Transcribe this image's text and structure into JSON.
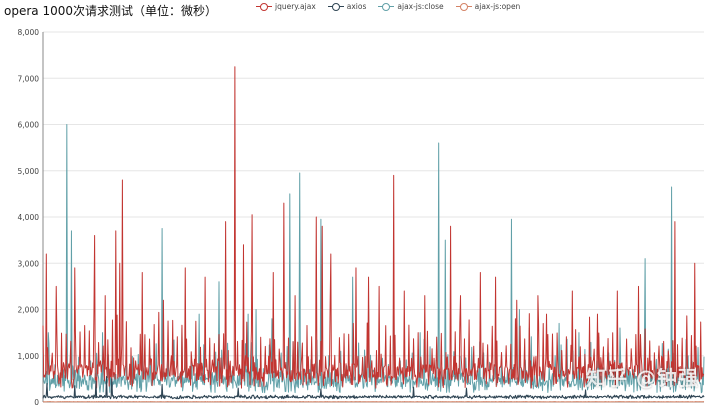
{
  "chart_data": {
    "type": "line",
    "title": "opera 1000次请求测试（单位：微秒）",
    "xlabel": "",
    "ylabel": "",
    "ylim": [
      0,
      8000
    ],
    "yticks": [
      0,
      1000,
      2000,
      3000,
      4000,
      5000,
      6000,
      7000,
      8000
    ],
    "ytick_labels": [
      "0",
      "1,000",
      "2,000",
      "3,000",
      "4,000",
      "5,000",
      "6,000",
      "7,000",
      "8,000"
    ],
    "x_count": 1000,
    "grid": true,
    "legend_position": "top",
    "series": [
      {
        "name": "jquery.ajax",
        "color": "#c23531",
        "baseline": 650,
        "noise": 350,
        "spike_every": 7,
        "spikes": [
          {
            "x": 5,
            "y": 3200
          },
          {
            "x": 20,
            "y": 2500
          },
          {
            "x": 48,
            "y": 2900
          },
          {
            "x": 78,
            "y": 3600
          },
          {
            "x": 94,
            "y": 2300
          },
          {
            "x": 110,
            "y": 3700
          },
          {
            "x": 116,
            "y": 3000
          },
          {
            "x": 120,
            "y": 4800
          },
          {
            "x": 150,
            "y": 2800
          },
          {
            "x": 182,
            "y": 2200
          },
          {
            "x": 215,
            "y": 2900
          },
          {
            "x": 245,
            "y": 2700
          },
          {
            "x": 276,
            "y": 3900
          },
          {
            "x": 290,
            "y": 7250
          },
          {
            "x": 303,
            "y": 3400
          },
          {
            "x": 316,
            "y": 4050
          },
          {
            "x": 348,
            "y": 2800
          },
          {
            "x": 364,
            "y": 4300
          },
          {
            "x": 381,
            "y": 2300
          },
          {
            "x": 413,
            "y": 4000
          },
          {
            "x": 422,
            "y": 3800
          },
          {
            "x": 435,
            "y": 3200
          },
          {
            "x": 473,
            "y": 2900
          },
          {
            "x": 492,
            "y": 2700
          },
          {
            "x": 508,
            "y": 2500
          },
          {
            "x": 530,
            "y": 4900
          },
          {
            "x": 546,
            "y": 2400
          },
          {
            "x": 577,
            "y": 2300
          },
          {
            "x": 616,
            "y": 3800
          },
          {
            "x": 631,
            "y": 2300
          },
          {
            "x": 661,
            "y": 2800
          },
          {
            "x": 684,
            "y": 2700
          },
          {
            "x": 716,
            "y": 2200
          },
          {
            "x": 748,
            "y": 2300
          },
          {
            "x": 761,
            "y": 1900
          },
          {
            "x": 800,
            "y": 2400
          },
          {
            "x": 838,
            "y": 1900
          },
          {
            "x": 868,
            "y": 2400
          },
          {
            "x": 900,
            "y": 2500
          },
          {
            "x": 955,
            "y": 3900
          },
          {
            "x": 985,
            "y": 3000
          }
        ]
      },
      {
        "name": "axios",
        "color": "#2f4554",
        "baseline": 110,
        "noise": 40,
        "spike_every": 0,
        "spikes": [
          {
            "x": 6,
            "y": 400
          },
          {
            "x": 48,
            "y": 350
          },
          {
            "x": 80,
            "y": 450
          },
          {
            "x": 96,
            "y": 550
          },
          {
            "x": 104,
            "y": 500
          },
          {
            "x": 180,
            "y": 380
          },
          {
            "x": 295,
            "y": 300
          },
          {
            "x": 420,
            "y": 280
          },
          {
            "x": 560,
            "y": 320
          },
          {
            "x": 640,
            "y": 300
          },
          {
            "x": 820,
            "y": 260
          }
        ]
      },
      {
        "name": "ajax-js:close",
        "color": "#61a0a8",
        "baseline": 450,
        "noise": 250,
        "spike_every": 9,
        "spikes": [
          {
            "x": 8,
            "y": 1500
          },
          {
            "x": 36,
            "y": 6000
          },
          {
            "x": 43,
            "y": 3700
          },
          {
            "x": 90,
            "y": 1500
          },
          {
            "x": 150,
            "y": 2100
          },
          {
            "x": 180,
            "y": 3750
          },
          {
            "x": 210,
            "y": 1600
          },
          {
            "x": 236,
            "y": 1900
          },
          {
            "x": 266,
            "y": 2600
          },
          {
            "x": 310,
            "y": 1900
          },
          {
            "x": 322,
            "y": 2000
          },
          {
            "x": 346,
            "y": 1800
          },
          {
            "x": 373,
            "y": 4500
          },
          {
            "x": 388,
            "y": 4950
          },
          {
            "x": 420,
            "y": 3950
          },
          {
            "x": 468,
            "y": 2700
          },
          {
            "x": 492,
            "y": 2100
          },
          {
            "x": 530,
            "y": 2700
          },
          {
            "x": 570,
            "y": 1500
          },
          {
            "x": 598,
            "y": 5600
          },
          {
            "x": 608,
            "y": 3500
          },
          {
            "x": 660,
            "y": 1300
          },
          {
            "x": 708,
            "y": 3950
          },
          {
            "x": 720,
            "y": 2000
          },
          {
            "x": 735,
            "y": 1600
          },
          {
            "x": 780,
            "y": 1700
          },
          {
            "x": 810,
            "y": 1500
          },
          {
            "x": 840,
            "y": 1400
          },
          {
            "x": 872,
            "y": 1600
          },
          {
            "x": 910,
            "y": 3100
          },
          {
            "x": 950,
            "y": 4650
          },
          {
            "x": 975,
            "y": 1000
          }
        ]
      },
      {
        "name": "ajax-js:open",
        "color": "#d48265",
        "baseline": 5,
        "noise": 4,
        "spike_every": 0,
        "spikes": []
      }
    ]
  },
  "watermark": "知乎 @钟强"
}
